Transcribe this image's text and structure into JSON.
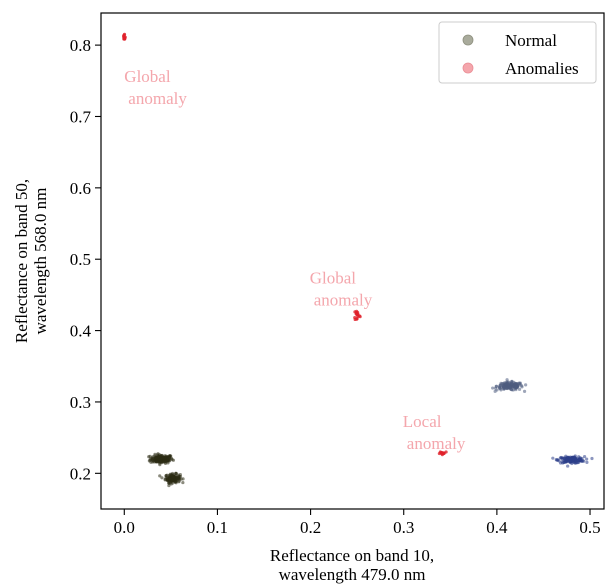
{
  "chart_data": {
    "type": "scatter",
    "xlabel": [
      "Reflectance on band 10,",
      "wavelength 479.0 nm"
    ],
    "ylabel": [
      "Reflectance on band 50,",
      "wavelength 568.0 nm"
    ],
    "xlim": [
      -0.025,
      0.515
    ],
    "ylim": [
      0.15,
      0.845
    ],
    "xticks": [
      0.0,
      0.1,
      0.2,
      0.3,
      0.4,
      0.5
    ],
    "xtick_labels": [
      "0.0",
      "0.1",
      "0.2",
      "0.3",
      "0.4",
      "0.5"
    ],
    "yticks": [
      0.2,
      0.3,
      0.4,
      0.5,
      0.6,
      0.7,
      0.8
    ],
    "ytick_labels": [
      "0.2",
      "0.3",
      "0.4",
      "0.5",
      "0.6",
      "0.7",
      "0.8"
    ],
    "grid": false,
    "legend": {
      "placement": "top-right",
      "entries": [
        {
          "label": "Normal",
          "color": "#a9ab9c"
        },
        {
          "label": "Anomalies",
          "color": "#f4a6ac"
        }
      ]
    },
    "series": [
      {
        "name": "Normal",
        "clusters": [
          {
            "center": [
              0.04,
              0.22
            ],
            "spread": [
              0.006,
              0.003
            ],
            "color": "#2b2b14",
            "n": 160
          },
          {
            "center": [
              0.052,
              0.193
            ],
            "spread": [
              0.004,
              0.003
            ],
            "color": "#2b2b14",
            "n": 140
          },
          {
            "center": [
              0.414,
              0.322
            ],
            "spread": [
              0.007,
              0.0028
            ],
            "color": "#4f5d80",
            "n": 160
          },
          {
            "center": [
              0.48,
              0.219
            ],
            "spread": [
              0.007,
              0.0022
            ],
            "color": "#2e3f8a",
            "n": 160
          }
        ]
      },
      {
        "name": "Anomalies",
        "clusters": [
          {
            "center": [
              0.0,
              0.811
            ],
            "spread": [
              0.0006,
              0.003
            ],
            "color": "#e0202a",
            "n": 14
          },
          {
            "center": [
              0.25,
              0.422
            ],
            "spread": [
              0.0015,
              0.004
            ],
            "color": "#e0202a",
            "n": 16
          },
          {
            "center": [
              0.342,
              0.229
            ],
            "spread": [
              0.003,
              0.001
            ],
            "color": "#e0202a",
            "n": 12
          }
        ]
      }
    ],
    "annotations": [
      {
        "lines": [
          "Global",
          "anomaly"
        ],
        "x": 0.0,
        "y": 0.748,
        "color": "#f4a6ac"
      },
      {
        "lines": [
          "Global",
          "anomaly"
        ],
        "x": 0.199,
        "y": 0.466,
        "color": "#f4a6ac"
      },
      {
        "lines": [
          "Local",
          "anomaly"
        ],
        "x": 0.299,
        "y": 0.265,
        "color": "#f4a6ac"
      }
    ]
  }
}
